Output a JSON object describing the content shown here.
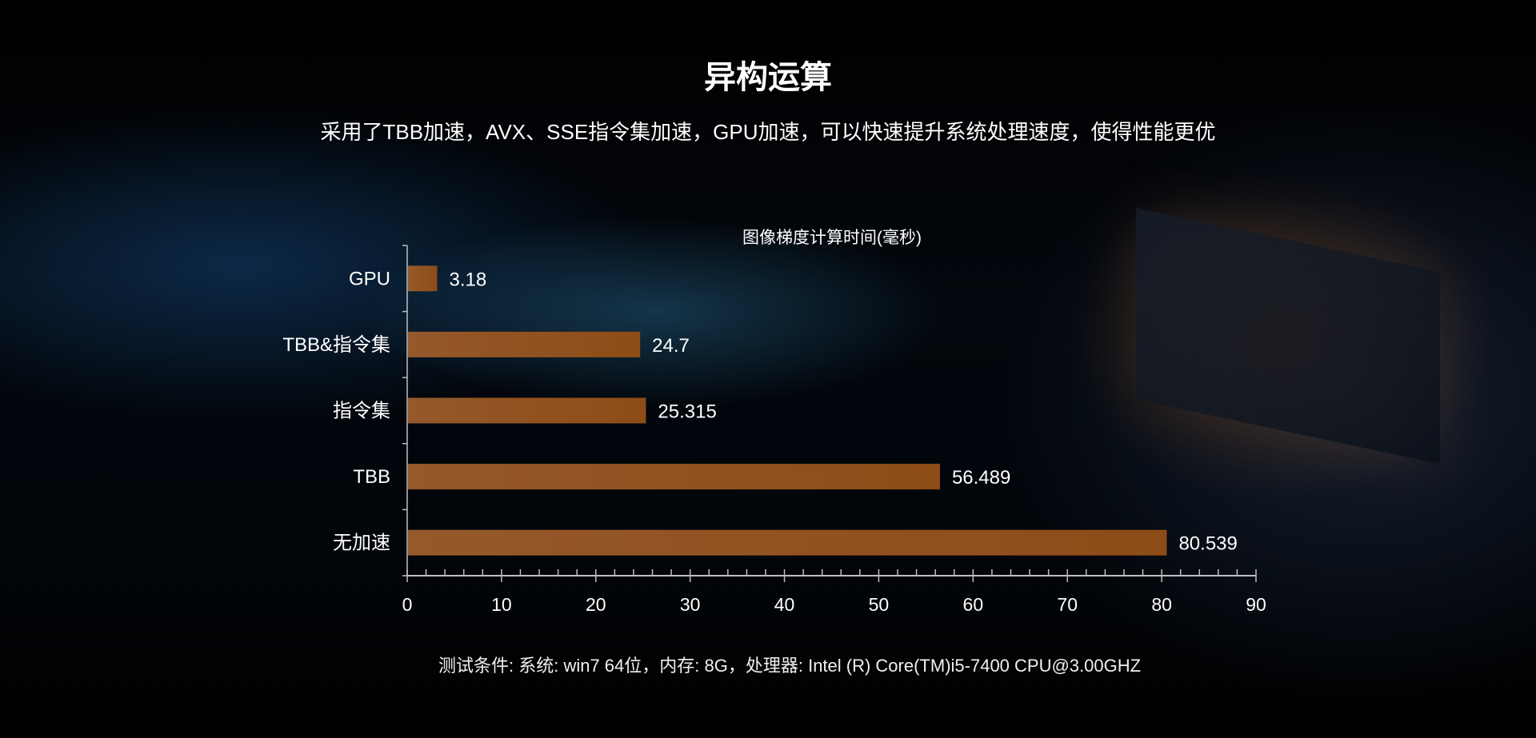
{
  "header": {
    "title": "异构运算",
    "subtitle": "采用了TBB加速，AVX、SSE指令集加速，GPU加速，可以快速提升系统处理速度，使得性能更优"
  },
  "footer": {
    "text": "测试条件: 系统: win7 64位，内存: 8G，处理器: Intel (R) Core(TM)i5-7400 CPU@3.00GHZ"
  },
  "colors": {
    "bar": "#8e4c16",
    "bar_light": "#95592c",
    "axis": "#bfbfbf"
  },
  "chart_data": {
    "type": "bar",
    "orientation": "horizontal",
    "title": "图像梯度计算时间(毫秒)",
    "categories": [
      "GPU",
      "TBB&指令集",
      "指令集",
      "TBB",
      "无加速"
    ],
    "values": [
      3.18,
      24.7,
      25.315,
      56.489,
      80.539
    ],
    "value_labels": [
      "3.18",
      "24.7",
      "25.315",
      "56.489",
      "80.539"
    ],
    "xlim": [
      0,
      90
    ],
    "xticks": [
      "0",
      "10",
      "20",
      "30",
      "40",
      "50",
      "60",
      "70",
      "80",
      "90"
    ],
    "grid": false,
    "legend": "none"
  }
}
